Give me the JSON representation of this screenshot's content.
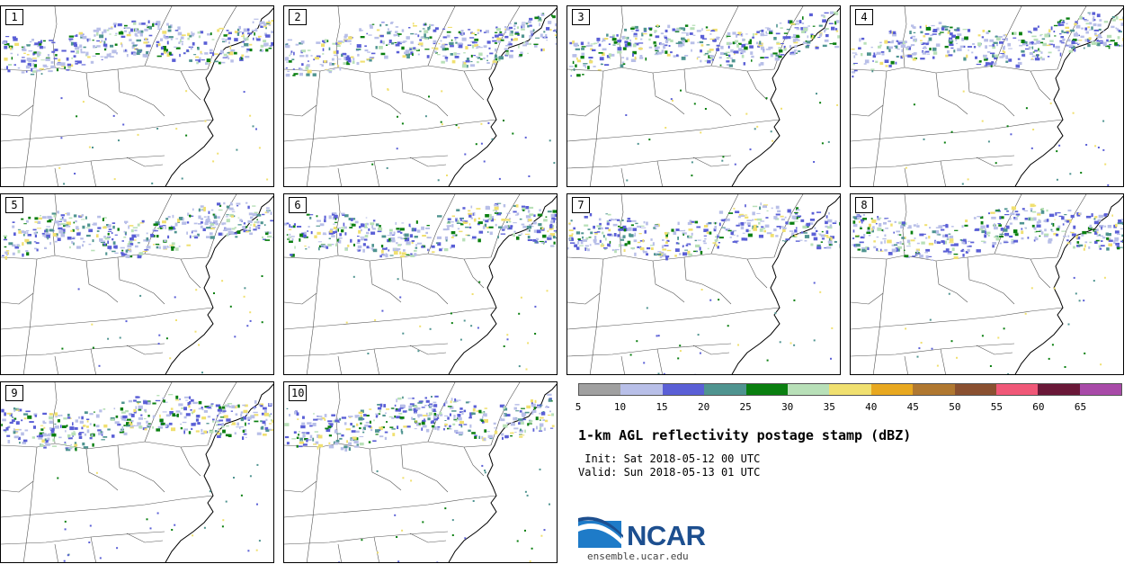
{
  "panels": [
    {
      "label": "1"
    },
    {
      "label": "2"
    },
    {
      "label": "3"
    },
    {
      "label": "4"
    },
    {
      "label": "5"
    },
    {
      "label": "6"
    },
    {
      "label": "7"
    },
    {
      "label": "8"
    },
    {
      "label": "9"
    },
    {
      "label": "10"
    }
  ],
  "colorbar": {
    "colors": [
      "#a0a0a0",
      "#b8bfe8",
      "#5a5fd6",
      "#4f9490",
      "#0a7f10",
      "#b8e0b8",
      "#f0e070",
      "#e8a820",
      "#b07830",
      "#8a5030",
      "#f05878",
      "#6a1838",
      "#a84aa8"
    ],
    "ticks": [
      "5",
      "10",
      "15",
      "20",
      "25",
      "30",
      "35",
      "40",
      "45",
      "50",
      "55",
      "60",
      "65"
    ]
  },
  "title": "1-km AGL reflectivity postage stamp (dBZ)",
  "init": " Init: Sat 2018-05-12 00 UTC",
  "valid": "Valid: Sun 2018-05-13 01 UTC",
  "logo": {
    "text": "NCAR",
    "site": "ensemble.ucar.edu",
    "primary_color": "#1d4f8f"
  }
}
